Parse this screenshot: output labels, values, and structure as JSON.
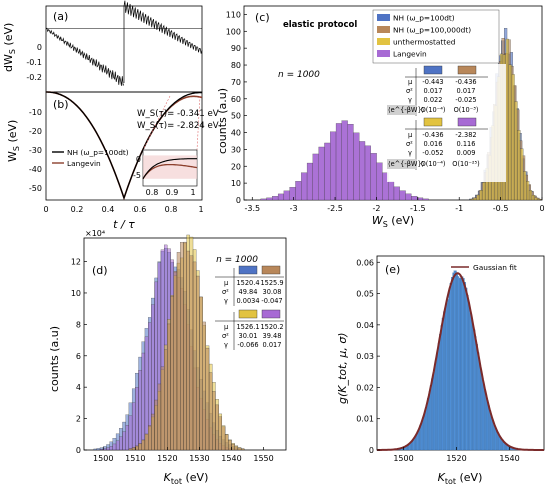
{
  "colors": {
    "nh100": "#4f73c4",
    "nh100000": "#b8875a",
    "unthermo": "#e2c341",
    "langevin": "#a76ad4",
    "curve_nh": "#000000",
    "curve_lang": "#8c3f2c",
    "fit": "#7a2a2a",
    "hist_e": "#4f8fd6"
  },
  "panel_a": {
    "label": "(a)",
    "ylabel": "dW",
    "ylabel_sub": "S",
    "ylabel_unit": " (eV)",
    "yticks": [
      "0",
      "-0.1",
      "-0.2"
    ]
  },
  "panel_b": {
    "label": "(b)",
    "ylabel": "W",
    "ylabel_sub": "S",
    "ylabel_unit": " (eV)",
    "yticks": [
      "-10",
      "-20",
      "-30",
      "-40",
      "-50"
    ],
    "xticks": [
      "0",
      "0.2",
      "0.4",
      "0.6",
      "0.8",
      "1"
    ],
    "xlabel": "t / τ",
    "ann1": "W_S(τ)= -0.341 eV",
    "ann2": "W_S(τ)= -2.824 eV",
    "legend": [
      "NH (ω_p=100dt)",
      "Langevin"
    ],
    "inset_yticks": [
      "0",
      "-5"
    ],
    "inset_xticks": [
      "0.8",
      "0.9",
      "1"
    ]
  },
  "panel_c": {
    "label": "(c)",
    "protocol": "elastic protocol",
    "n_label": "n = 1000",
    "ylabel": "counts (a.u)",
    "xlabel": "W",
    "xlabel_sub": "S",
    "xlabel_unit": " (eV)",
    "yticks": [
      "0",
      "10",
      "20",
      "30",
      "40",
      "50",
      "60",
      "70",
      "80",
      "90",
      "100",
      "110"
    ],
    "xticks": [
      "-3.5",
      "-3",
      "-2.5",
      "-2",
      "-1.5",
      "-1",
      "-0.5",
      "0"
    ],
    "legend": [
      "NH (ω_p=100dt)",
      "NH (ω_p=100,000dt)",
      "unthermostatted",
      "Langevin"
    ],
    "table": {
      "top": {
        "mu": [
          "-0.443",
          "-0.436"
        ],
        "sigma2": [
          "0.017",
          "0.017"
        ],
        "gamma": [
          "0.022",
          "-0.025"
        ],
        "exp": [
          "O(10⁻⁴)",
          "O(10⁻³)"
        ]
      },
      "bottom": {
        "mu": [
          "-0.436",
          "-2.382"
        ],
        "sigma2": [
          "0.016",
          "0.116"
        ],
        "gamma": [
          "-0.052",
          "0.009"
        ],
        "exp": [
          "O(10⁻⁴)",
          "O(10⁻²⁵)"
        ]
      },
      "row_labels": [
        "μ",
        "σ²",
        "γ",
        "⟨e^{-βW}⟩"
      ]
    }
  },
  "panel_d": {
    "label": "(d)",
    "ylabel": "counts (a.u)",
    "xlabel": "K",
    "xlabel_sub": "tot",
    "xlabel_unit": " (eV)",
    "multiplier": "×10⁴",
    "n_label": "n = 1000",
    "yticks": [
      "0",
      "2",
      "4",
      "6",
      "8",
      "10",
      "12"
    ],
    "xticks": [
      "1500",
      "1510",
      "1520",
      "1530",
      "1540",
      "1550"
    ],
    "table": {
      "top": {
        "mu": [
          "1520.4",
          "1525.9"
        ],
        "sigma2": [
          "49.84",
          "30.08"
        ],
        "gamma": [
          "0.0034",
          "-0.047"
        ]
      },
      "bottom": {
        "mu": [
          "1526.1",
          "1520.2"
        ],
        "sigma2": [
          "30.01",
          "39.48"
        ],
        "gamma": [
          "-0.066",
          "0.017"
        ]
      },
      "row_labels": [
        "μ",
        "σ²",
        "γ"
      ]
    }
  },
  "panel_e": {
    "label": "(e)",
    "ylabel": "g(K_tot, μ, σ)",
    "xlabel": "K",
    "xlabel_sub": "tot",
    "xlabel_unit": " (eV)",
    "yticks": [
      "0",
      "0.01",
      "0.02",
      "0.03",
      "0.04",
      "0.05",
      "0.06"
    ],
    "xticks": [
      "1500",
      "1520",
      "1540"
    ],
    "legend": "Gaussian fit"
  },
  "chart_data": [
    {
      "type": "line",
      "panel": "a",
      "x_range": [
        0,
        1
      ],
      "ylim": [
        -0.28,
        0.1
      ],
      "series": [
        {
          "name": "NH",
          "x": [
            0,
            0.1,
            0.2,
            0.3,
            0.4,
            0.5,
            0.5,
            0.6,
            0.7,
            0.8,
            0.9,
            1.0
          ],
          "y": [
            0,
            -0.05,
            -0.09,
            -0.14,
            -0.19,
            -0.24,
            0.1,
            0.05,
            0.0,
            -0.04,
            -0.07,
            -0.1
          ]
        }
      ]
    },
    {
      "type": "line",
      "panel": "b",
      "xlabel": "t/τ",
      "ylim": [
        -55,
        0
      ],
      "x": [
        0,
        0.1,
        0.2,
        0.3,
        0.4,
        0.45,
        0.5,
        0.55,
        0.6,
        0.7,
        0.8,
        0.9,
        1.0
      ],
      "series": [
        {
          "name": "NH (ω_p=100dt)",
          "y": [
            0,
            -1.3,
            -5.5,
            -13,
            -25,
            -37,
            -54,
            -37,
            -25,
            -13,
            -5.5,
            -1.3,
            -0.341
          ]
        },
        {
          "name": "Langevin",
          "y": [
            0,
            -1.3,
            -5.5,
            -13,
            -25,
            -37,
            -54,
            -37,
            -25,
            -13,
            -5.8,
            -1.8,
            -2.824
          ]
        }
      ],
      "annotations": [
        "W_S(τ)= -0.341 eV",
        "W_S(τ)= -2.824 eV"
      ]
    },
    {
      "type": "bar",
      "panel": "c",
      "xlim": [
        -3.6,
        0
      ],
      "ylim": [
        0,
        115
      ],
      "series": [
        {
          "name": "NH (ω_p=100dt)",
          "distribution": "normal",
          "mu": -0.443,
          "sigma2": 0.017,
          "peak": 96
        },
        {
          "name": "NH (ω_p=100,000dt)",
          "distribution": "normal",
          "mu": -0.436,
          "sigma2": 0.017,
          "peak": 93
        },
        {
          "name": "unthermostatted",
          "distribution": "normal",
          "mu": -0.436,
          "sigma2": 0.016,
          "peak": 90
        },
        {
          "name": "Langevin",
          "distribution": "normal",
          "mu": -2.382,
          "sigma2": 0.116,
          "peak": 44
        }
      ]
    },
    {
      "type": "bar",
      "panel": "d",
      "xlim": [
        1494,
        1557
      ],
      "ylim": [
        0,
        13.5
      ],
      "y_multiplier": 10000,
      "series": [
        {
          "name": "NH (ω_p=100dt)",
          "distribution": "normal",
          "mu": 1520.4,
          "sigma2": 49.84,
          "peak": 12.5
        },
        {
          "name": "NH (ω_p=100,000dt)",
          "distribution": "normal",
          "mu": 1525.9,
          "sigma2": 30.08,
          "peak": 13.2
        },
        {
          "name": "unthermostatted",
          "distribution": "normal",
          "mu": 1526.1,
          "sigma2": 30.01,
          "peak": 13.4
        },
        {
          "name": "Langevin",
          "distribution": "normal",
          "mu": 1520.2,
          "sigma2": 39.48,
          "peak": 12.6
        }
      ]
    },
    {
      "type": "bar",
      "panel": "e",
      "xlim": [
        1490,
        1553
      ],
      "ylim": [
        0,
        0.062
      ],
      "series": [
        {
          "name": "histogram",
          "distribution": "normal",
          "mu": 1520.4,
          "sigma": 7.06,
          "peak": 0.0565
        },
        {
          "name": "Gaussian fit",
          "distribution": "normal",
          "mu": 1520.4,
          "sigma": 7.06,
          "peak": 0.0565
        }
      ]
    }
  ]
}
